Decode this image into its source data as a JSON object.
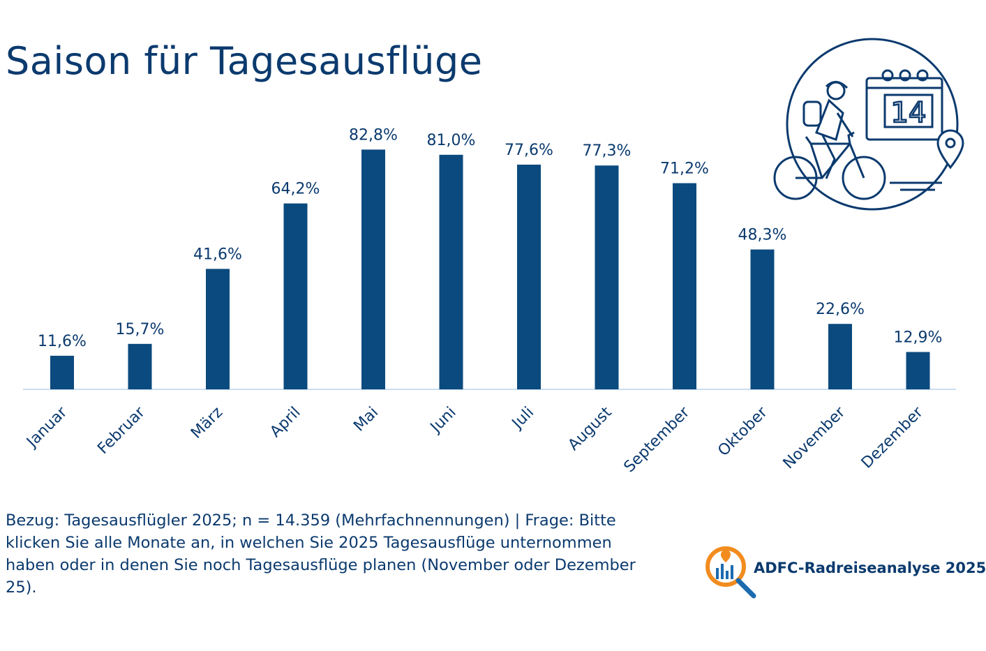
{
  "title": "Saison für Tagesausflüge",
  "footnote": "Bezug: Tagesausflügler 2025; n = 14.359 (Mehrfachnennungen) | Frage: Bitte klicken Sie alle Monate an, in welchen Sie 2025 Tagesausflüge unternommen haben oder in denen Sie noch Tagesausflüge planen (November oder Dezember 25).",
  "logo": {
    "text": "ADFC-Radreiseanalyse 2025",
    "icon": "magnifier-chart-icon"
  },
  "illustration": {
    "icon": "cyclist-calendar-icon",
    "calendar_day": "14"
  },
  "colors": {
    "bar": "#0b4a7e",
    "text": "#0b3a6e",
    "axis": "#b8d4ec",
    "accent_orange": "#f28c1e",
    "accent_blue": "#1c6bb0"
  },
  "chart_data": {
    "type": "bar",
    "title": "Saison für Tagesausflüge",
    "xlabel": "",
    "ylabel": "",
    "categories": [
      "Januar",
      "Februar",
      "März",
      "April",
      "Mai",
      "Juni",
      "Juli",
      "August",
      "September",
      "Oktober",
      "November",
      "Dezember"
    ],
    "values": [
      11.6,
      15.7,
      41.6,
      64.2,
      82.8,
      81.0,
      77.6,
      77.3,
      71.2,
      48.3,
      22.6,
      12.9
    ],
    "labels": [
      "11,6%",
      "15,7%",
      "41,6%",
      "64,2%",
      "82,8%",
      "81,0%",
      "77,6%",
      "77,3%",
      "71,2%",
      "48,3%",
      "22,6%",
      "12,9%"
    ],
    "unit": "%",
    "ylim": [
      0,
      100
    ],
    "grid": false,
    "legend": "none"
  }
}
